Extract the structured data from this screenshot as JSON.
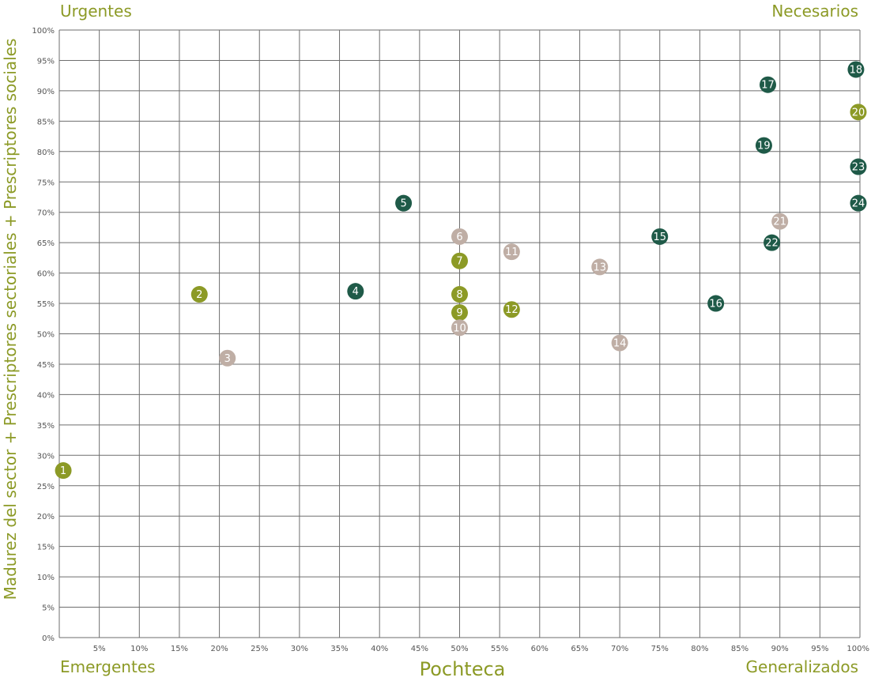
{
  "quadrants": {
    "top_left": "Urgentes",
    "top_right": "Necesarios",
    "bottom_left": "Emergentes",
    "bottom_right": "Generalizados"
  },
  "colors": {
    "olive": "#8c9a26",
    "dark_green": "#1f5a48",
    "taupe": "#bfaea5",
    "grid": "#6e6e6e"
  },
  "chart_data": {
    "type": "scatter",
    "xlabel": "Pochteca",
    "ylabel": "Madurez del sector + Prescriptores sectoriales + Prescriptores sociales",
    "xlim": [
      0,
      100
    ],
    "ylim": [
      0,
      100
    ],
    "grid": true,
    "x_ticks": [
      "5%",
      "10%",
      "15%",
      "20%",
      "25%",
      "30%",
      "35%",
      "40%",
      "45%",
      "50%",
      "55%",
      "60%",
      "65%",
      "70%",
      "75%",
      "80%",
      "85%",
      "90%",
      "95%",
      "100%"
    ],
    "y_ticks": [
      "0%",
      "5%",
      "10%",
      "15%",
      "20%",
      "25%",
      "30%",
      "35%",
      "40%",
      "45%",
      "50%",
      "55%",
      "60%",
      "65%",
      "70%",
      "75%",
      "80%",
      "85%",
      "90%",
      "95%",
      "100%"
    ],
    "points": [
      {
        "label": "1",
        "x": 0.5,
        "y": 27.5,
        "group": "olive"
      },
      {
        "label": "2",
        "x": 17.5,
        "y": 56.5,
        "group": "olive"
      },
      {
        "label": "3",
        "x": 21,
        "y": 46,
        "group": "taupe"
      },
      {
        "label": "4",
        "x": 37,
        "y": 57,
        "group": "dark_green"
      },
      {
        "label": "5",
        "x": 43,
        "y": 71.5,
        "group": "dark_green"
      },
      {
        "label": "6",
        "x": 50,
        "y": 66,
        "group": "taupe"
      },
      {
        "label": "7",
        "x": 50,
        "y": 62,
        "group": "olive"
      },
      {
        "label": "8",
        "x": 50,
        "y": 56.5,
        "group": "olive"
      },
      {
        "label": "9",
        "x": 50,
        "y": 53.5,
        "group": "olive"
      },
      {
        "label": "10",
        "x": 50,
        "y": 51,
        "group": "taupe"
      },
      {
        "label": "11",
        "x": 56.5,
        "y": 63.5,
        "group": "taupe"
      },
      {
        "label": "12",
        "x": 56.5,
        "y": 54,
        "group": "olive"
      },
      {
        "label": "13",
        "x": 67.5,
        "y": 61,
        "group": "taupe"
      },
      {
        "label": "14",
        "x": 70,
        "y": 48.5,
        "group": "taupe"
      },
      {
        "label": "15",
        "x": 75,
        "y": 66,
        "group": "dark_green"
      },
      {
        "label": "16",
        "x": 82,
        "y": 55,
        "group": "dark_green"
      },
      {
        "label": "17",
        "x": 88.5,
        "y": 91,
        "group": "dark_green"
      },
      {
        "label": "18",
        "x": 99.5,
        "y": 93.5,
        "group": "dark_green"
      },
      {
        "label": "19",
        "x": 88,
        "y": 81,
        "group": "dark_green"
      },
      {
        "label": "20",
        "x": 99.8,
        "y": 86.5,
        "group": "olive"
      },
      {
        "label": "21",
        "x": 90,
        "y": 68.5,
        "group": "taupe"
      },
      {
        "label": "22",
        "x": 89,
        "y": 65,
        "group": "dark_green"
      },
      {
        "label": "23",
        "x": 99.8,
        "y": 77.5,
        "group": "dark_green"
      },
      {
        "label": "24",
        "x": 99.8,
        "y": 71.5,
        "group": "dark_green"
      }
    ]
  }
}
